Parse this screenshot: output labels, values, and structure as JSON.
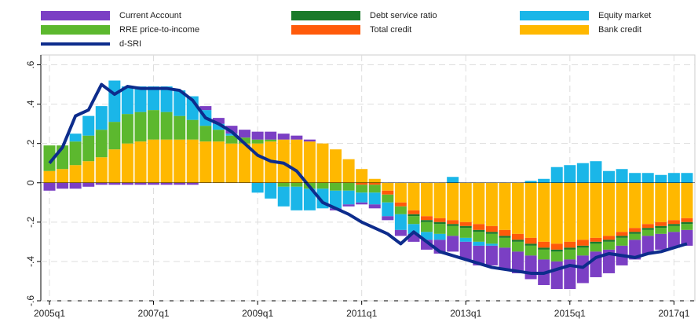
{
  "chart_data": {
    "type": "bar",
    "stacked": true,
    "categories": [
      "2005q1",
      null,
      null,
      null,
      null,
      null,
      null,
      null,
      "2007q1",
      null,
      null,
      null,
      null,
      null,
      null,
      null,
      "2009q1",
      null,
      null,
      null,
      null,
      null,
      null,
      null,
      "2011q1",
      null,
      null,
      null,
      null,
      null,
      null,
      null,
      "2013q1",
      null,
      null,
      null,
      null,
      null,
      null,
      null,
      "2015q1",
      null,
      null,
      null,
      null,
      null,
      null,
      null,
      "2017q1",
      null
    ],
    "ylim": [
      -0.6,
      0.65
    ],
    "yticks": [
      {
        "value": -0.6,
        "label": "-.6"
      },
      {
        "value": -0.4,
        "label": "-.4"
      },
      {
        "value": -0.2,
        "label": "-.2"
      },
      0,
      {
        "value": 0.2,
        "label": ".2"
      },
      {
        "value": 0.4,
        "label": ".4"
      },
      {
        "value": 0.6,
        "label": ".6"
      }
    ],
    "grid": true,
    "series": [
      {
        "name": "Current Account",
        "color": "#7b3fc4",
        "values": [
          -0.04,
          -0.03,
          -0.03,
          -0.02,
          -0.01,
          -0.01,
          -0.01,
          -0.01,
          -0.01,
          -0.01,
          -0.01,
          -0.01,
          0.02,
          0.03,
          0.04,
          0.04,
          0.04,
          0.04,
          0.03,
          0.02,
          0.01,
          0,
          -0.01,
          -0.01,
          -0.01,
          -0.02,
          -0.02,
          -0.03,
          -0.04,
          -0.05,
          -0.07,
          -0.08,
          -0.09,
          -0.1,
          -0.1,
          -0.11,
          -0.11,
          -0.12,
          -0.13,
          -0.14,
          -0.15,
          -0.14,
          -0.13,
          -0.12,
          -0.1,
          -0.1,
          -0.09,
          -0.08,
          -0.08,
          -0.08
        ]
      },
      {
        "name": "Debt service ratio",
        "color": "#1a7a2a",
        "values": [
          0,
          0,
          0,
          0,
          0,
          0,
          0,
          0,
          0,
          0,
          0,
          0,
          0,
          0,
          0,
          0,
          0,
          0,
          0,
          0,
          0,
          0,
          0,
          0,
          0,
          0,
          0,
          0,
          -0.01,
          -0.01,
          -0.01,
          -0.01,
          -0.01,
          -0.01,
          -0.01,
          -0.01,
          -0.01,
          -0.01,
          -0.01,
          -0.01,
          -0.01,
          -0.01,
          -0.01,
          -0.01,
          -0.01,
          -0.01,
          -0.01,
          -0.01,
          -0.01,
          -0.01
        ]
      },
      {
        "name": "Equity market",
        "color": "#1ab6e8",
        "values": [
          0,
          0,
          0.04,
          0.1,
          0.12,
          0.21,
          0.14,
          0.13,
          0.12,
          0.13,
          0.13,
          0.12,
          0.08,
          0.03,
          0.01,
          0,
          -0.05,
          -0.08,
          -0.1,
          -0.12,
          -0.11,
          -0.1,
          -0.09,
          -0.07,
          -0.05,
          -0.06,
          -0.07,
          -0.08,
          -0.05,
          -0.04,
          -0.03,
          0.03,
          -0.02,
          -0.02,
          -0.01,
          0,
          0,
          0.01,
          0.02,
          0.08,
          0.09,
          0.1,
          0.11,
          0.06,
          0.07,
          0.05,
          0.05,
          0.04,
          0.05,
          0.05
        ]
      },
      {
        "name": "RRE price-to-income",
        "color": "#5cb82e",
        "values": [
          0.13,
          0.12,
          0.12,
          0.13,
          0.14,
          0.14,
          0.15,
          0.15,
          0.15,
          0.14,
          0.12,
          0.1,
          0.08,
          0.06,
          0.04,
          0.03,
          0.02,
          0.01,
          -0.02,
          -0.02,
          -0.03,
          -0.03,
          -0.04,
          -0.04,
          -0.04,
          -0.04,
          -0.04,
          -0.04,
          -0.04,
          -0.05,
          -0.05,
          -0.05,
          -0.05,
          -0.05,
          -0.05,
          -0.05,
          -0.05,
          -0.05,
          -0.05,
          -0.05,
          -0.05,
          -0.04,
          -0.04,
          -0.04,
          -0.04,
          -0.03,
          -0.03,
          -0.03,
          -0.03,
          -0.03
        ]
      },
      {
        "name": "Total credit",
        "color": "#ff5a0a",
        "values": [
          0,
          0,
          0,
          0,
          0,
          0,
          0,
          0,
          0,
          0,
          0,
          0,
          0,
          0,
          0,
          0,
          0,
          0,
          0,
          0,
          0,
          0,
          0,
          0,
          -0.01,
          -0.01,
          -0.02,
          -0.02,
          -0.02,
          -0.02,
          -0.02,
          -0.02,
          -0.02,
          -0.03,
          -0.03,
          -0.03,
          -0.03,
          -0.03,
          -0.03,
          -0.03,
          -0.03,
          -0.03,
          -0.02,
          -0.02,
          -0.02,
          -0.02,
          -0.02,
          -0.02,
          -0.02,
          -0.02
        ]
      },
      {
        "name": "Bank credit",
        "color": "#ffb800",
        "values": [
          0.06,
          0.07,
          0.09,
          0.11,
          0.13,
          0.17,
          0.2,
          0.21,
          0.22,
          0.22,
          0.22,
          0.22,
          0.21,
          0.21,
          0.2,
          0.2,
          0.2,
          0.21,
          0.22,
          0.22,
          0.21,
          0.2,
          0.17,
          0.12,
          0.07,
          0.02,
          -0.04,
          -0.1,
          -0.14,
          -0.17,
          -0.18,
          -0.19,
          -0.2,
          -0.21,
          -0.22,
          -0.24,
          -0.26,
          -0.28,
          -0.3,
          -0.31,
          -0.3,
          -0.29,
          -0.28,
          -0.27,
          -0.25,
          -0.23,
          -0.21,
          -0.2,
          -0.19,
          -0.18
        ]
      },
      {
        "name": "d-SRI",
        "color": "#0d2c8c",
        "type": "line",
        "values": [
          0.1,
          0.18,
          0.34,
          0.37,
          0.5,
          0.45,
          0.49,
          0.48,
          0.48,
          0.48,
          0.47,
          0.42,
          0.33,
          0.3,
          0.26,
          0.2,
          0.14,
          0.11,
          0.1,
          0.06,
          -0.02,
          -0.1,
          -0.13,
          -0.16,
          -0.2,
          -0.23,
          -0.26,
          -0.31,
          -0.25,
          -0.3,
          -0.35,
          -0.37,
          -0.39,
          -0.41,
          -0.43,
          -0.44,
          -0.45,
          -0.46,
          -0.46,
          -0.44,
          -0.42,
          -0.43,
          -0.38,
          -0.36,
          -0.37,
          -0.38,
          -0.36,
          -0.35,
          -0.33,
          -0.31
        ]
      }
    ]
  }
}
